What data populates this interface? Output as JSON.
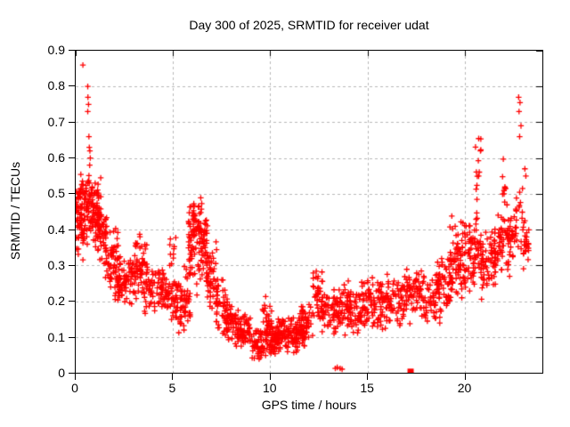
{
  "chart_data": {
    "type": "scatter",
    "title": "Day 300 of 2025, SRMTID for receiver udat",
    "xlabel": "GPS time / hours",
    "ylabel": "SRMTID / TECUs",
    "xlim": [
      0,
      24
    ],
    "ylim": [
      0,
      0.9
    ],
    "grid": true,
    "legend": "none",
    "marker": "plus-icon",
    "marker_color": "#ff0000",
    "grid_color": "#b8b8b8",
    "frame_color": "#000000",
    "x_ticks": [
      {
        "v": 0,
        "label": "0"
      },
      {
        "v": 5,
        "label": "5"
      },
      {
        "v": 10,
        "label": "10"
      },
      {
        "v": 15,
        "label": "15"
      },
      {
        "v": 20,
        "label": "20"
      }
    ],
    "y_ticks": [
      {
        "v": 0.0,
        "label": "0"
      },
      {
        "v": 0.1,
        "label": "0.1"
      },
      {
        "v": 0.2,
        "label": "0.2"
      },
      {
        "v": 0.3,
        "label": "0.3"
      },
      {
        "v": 0.4,
        "label": "0.4"
      },
      {
        "v": 0.5,
        "label": "0.5"
      },
      {
        "v": 0.6,
        "label": "0.6"
      },
      {
        "v": 0.7,
        "label": "0.7"
      },
      {
        "v": 0.8,
        "label": "0.8"
      },
      {
        "v": 0.9,
        "label": "0.9"
      }
    ],
    "seed": 42,
    "cluster_fields": [
      "hour_start",
      "hour_end",
      "y_min",
      "y_max",
      "count"
    ],
    "clusters": [
      [
        0.0,
        0.5,
        0.3,
        0.55,
        70
      ],
      [
        0.1,
        0.9,
        0.45,
        0.56,
        30
      ],
      [
        0.5,
        1.3,
        0.35,
        0.55,
        90
      ],
      [
        1.0,
        1.6,
        0.3,
        0.48,
        50
      ],
      [
        1.5,
        2.2,
        0.22,
        0.42,
        60
      ],
      [
        2.0,
        3.0,
        0.17,
        0.33,
        85
      ],
      [
        3.0,
        3.7,
        0.2,
        0.4,
        60
      ],
      [
        3.5,
        4.5,
        0.15,
        0.33,
        70
      ],
      [
        4.5,
        5.3,
        0.13,
        0.3,
        60
      ],
      [
        4.8,
        5.2,
        0.28,
        0.4,
        10
      ],
      [
        5.3,
        5.9,
        0.1,
        0.3,
        55
      ],
      [
        5.8,
        6.3,
        0.2,
        0.5,
        55
      ],
      [
        6.0,
        6.5,
        0.33,
        0.5,
        30
      ],
      [
        6.3,
        6.8,
        0.25,
        0.47,
        50
      ],
      [
        6.7,
        7.3,
        0.15,
        0.38,
        50
      ],
      [
        7.2,
        7.8,
        0.1,
        0.28,
        45
      ],
      [
        7.6,
        8.4,
        0.07,
        0.2,
        55
      ],
      [
        8.3,
        9.0,
        0.05,
        0.17,
        65
      ],
      [
        9.0,
        9.6,
        0.03,
        0.14,
        45
      ],
      [
        9.6,
        10.1,
        0.08,
        0.22,
        30
      ],
      [
        9.6,
        10.4,
        0.04,
        0.13,
        55
      ],
      [
        10.2,
        11.0,
        0.05,
        0.16,
        75
      ],
      [
        11.0,
        11.8,
        0.05,
        0.16,
        70
      ],
      [
        11.5,
        12.2,
        0.08,
        0.2,
        50
      ],
      [
        12.2,
        12.7,
        0.12,
        0.31,
        40
      ],
      [
        12.6,
        13.4,
        0.1,
        0.24,
        50
      ],
      [
        13.4,
        14.2,
        0.1,
        0.25,
        55
      ],
      [
        14.0,
        15.0,
        0.1,
        0.26,
        75
      ],
      [
        15.0,
        16.0,
        0.11,
        0.27,
        75
      ],
      [
        16.0,
        17.0,
        0.12,
        0.28,
        70
      ],
      [
        17.0,
        18.0,
        0.13,
        0.3,
        70
      ],
      [
        18.0,
        18.8,
        0.13,
        0.3,
        55
      ],
      [
        18.6,
        19.4,
        0.17,
        0.35,
        55
      ],
      [
        19.2,
        20.0,
        0.2,
        0.45,
        70
      ],
      [
        20.0,
        20.6,
        0.2,
        0.48,
        55
      ],
      [
        20.5,
        20.9,
        0.28,
        0.45,
        20
      ],
      [
        20.55,
        20.85,
        0.4,
        0.68,
        14
      ],
      [
        20.8,
        21.6,
        0.2,
        0.42,
        60
      ],
      [
        21.5,
        22.0,
        0.25,
        0.45,
        45
      ],
      [
        21.9,
        22.2,
        0.35,
        0.6,
        12
      ],
      [
        22.1,
        22.7,
        0.25,
        0.5,
        45
      ],
      [
        22.6,
        23.0,
        0.3,
        0.62,
        16
      ],
      [
        23.0,
        23.3,
        0.28,
        0.45,
        25
      ]
    ],
    "outlier_points": [
      [
        0.37,
        0.86
      ],
      [
        0.62,
        0.8
      ],
      [
        0.63,
        0.77
      ],
      [
        0.66,
        0.75
      ],
      [
        0.62,
        0.73
      ],
      [
        0.68,
        0.66
      ],
      [
        0.7,
        0.63
      ],
      [
        0.73,
        0.62
      ],
      [
        0.75,
        0.6
      ],
      [
        0.72,
        0.58
      ],
      [
        13.35,
        0.012
      ],
      [
        13.45,
        0.015
      ],
      [
        13.6,
        0.012
      ],
      [
        13.7,
        0.01
      ],
      [
        22.78,
        0.77
      ],
      [
        22.85,
        0.755
      ],
      [
        22.8,
        0.73
      ],
      [
        22.9,
        0.69
      ],
      [
        22.83,
        0.66
      ],
      [
        23.1,
        0.57
      ],
      [
        23.15,
        0.55
      ]
    ],
    "square_marker_point": {
      "x": 17.2,
      "y": 0.004
    }
  }
}
